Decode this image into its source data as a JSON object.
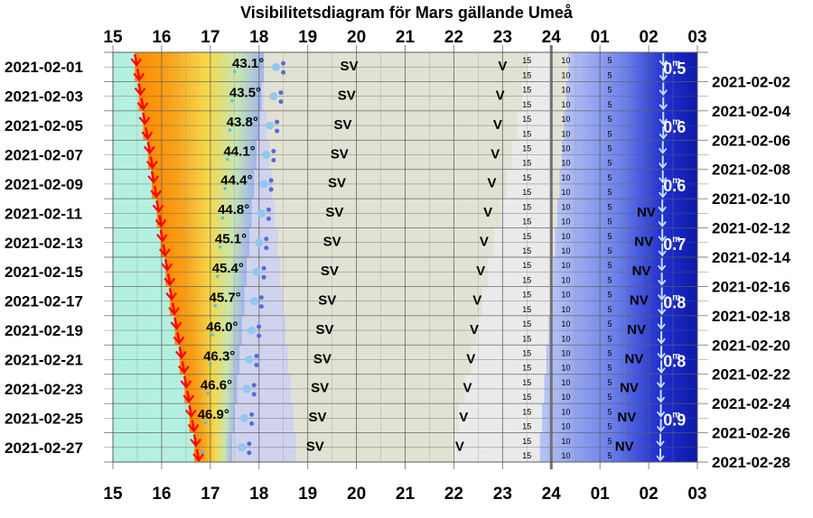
{
  "chart_data": {
    "type": "visibility-diagram",
    "title": "Visibilitetsdiagram för Mars gällande Umeå",
    "hour_labels": [
      "15",
      "16",
      "17",
      "18",
      "19",
      "20",
      "21",
      "22",
      "23",
      "24",
      "01",
      "02",
      "03"
    ],
    "dates_left": [
      "2021-02-01",
      "2021-02-03",
      "2021-02-05",
      "2021-02-07",
      "2021-02-09",
      "2021-02-11",
      "2021-02-13",
      "2021-02-15",
      "2021-02-17",
      "2021-02-19",
      "2021-02-21",
      "2021-02-23",
      "2021-02-25",
      "2021-02-27"
    ],
    "dates_right": [
      "2021-02-02",
      "2021-02-04",
      "2021-02-06",
      "2021-02-08",
      "2021-02-10",
      "2021-02-12",
      "2021-02-14",
      "2021-02-16",
      "2021-02-18",
      "2021-02-20",
      "2021-02-22",
      "2021-02-24",
      "2021-02-26",
      "2021-02-28"
    ],
    "x_range_hours": [
      15,
      27
    ],
    "rows": [
      {
        "sunset": 15.45,
        "twilight_end": 17.85,
        "alt_label": "43.1°",
        "sv_hour": 19.85,
        "v_hour": 23.0,
        "nv_hour": null,
        "mars_set": 2.3
      },
      {
        "sunset": 15.53,
        "twilight_end": 17.8,
        "alt_label": "43.5°",
        "sv_hour": 19.8,
        "v_hour": 22.95,
        "nv_hour": null,
        "mars_set": 2.3
      },
      {
        "sunset": 15.62,
        "twilight_end": 17.75,
        "alt_label": "43.8°",
        "sv_hour": 19.72,
        "v_hour": 22.9,
        "nv_hour": null,
        "mars_set": 2.3
      },
      {
        "sunset": 15.72,
        "twilight_end": 17.7,
        "alt_label": "44.1°",
        "sv_hour": 19.65,
        "v_hour": 22.85,
        "nv_hour": null,
        "mars_set": 2.29
      },
      {
        "sunset": 15.8,
        "twilight_end": 17.65,
        "alt_label": "44.4°",
        "sv_hour": 19.6,
        "v_hour": 22.78,
        "nv_hour": null,
        "mars_set": 2.29
      },
      {
        "sunset": 15.9,
        "twilight_end": 17.6,
        "alt_label": "44.8°",
        "sv_hour": 19.55,
        "v_hour": 22.7,
        "nv_hour": 1.95,
        "mars_set": 2.28
      },
      {
        "sunset": 15.98,
        "twilight_end": 17.55,
        "alt_label": "45.1°",
        "sv_hour": 19.5,
        "v_hour": 22.62,
        "nv_hour": 1.9,
        "mars_set": 2.28
      },
      {
        "sunset": 16.08,
        "twilight_end": 17.5,
        "alt_label": "45.4°",
        "sv_hour": 19.45,
        "v_hour": 22.55,
        "nv_hour": 1.85,
        "mars_set": 2.27
      },
      {
        "sunset": 16.17,
        "twilight_end": 17.45,
        "alt_label": "45.7°",
        "sv_hour": 19.4,
        "v_hour": 22.48,
        "nv_hour": 1.8,
        "mars_set": 2.27
      },
      {
        "sunset": 16.27,
        "twilight_end": 17.4,
        "alt_label": "46.0°",
        "sv_hour": 19.35,
        "v_hour": 22.42,
        "nv_hour": 1.75,
        "mars_set": 2.26
      },
      {
        "sunset": 16.37,
        "twilight_end": 17.35,
        "alt_label": "46.3°",
        "sv_hour": 19.3,
        "v_hour": 22.35,
        "nv_hour": 1.7,
        "mars_set": 2.26
      },
      {
        "sunset": 16.47,
        "twilight_end": 17.3,
        "alt_label": "46.6°",
        "sv_hour": 19.25,
        "v_hour": 22.28,
        "nv_hour": 1.6,
        "mars_set": 2.25
      },
      {
        "sunset": 16.57,
        "twilight_end": 17.25,
        "alt_label": "46.9°",
        "sv_hour": 19.2,
        "v_hour": 22.2,
        "nv_hour": 1.55,
        "mars_set": 2.25
      },
      {
        "sunset": 16.67,
        "twilight_end": 17.2,
        "alt_label": "",
        "sv_hour": 19.15,
        "v_hour": 22.12,
        "nv_hour": 1.5,
        "mars_set": 2.24
      }
    ],
    "altitude_marks": [
      "15",
      "10",
      "5"
    ],
    "magnitudes": [
      {
        "row": 0.5,
        "value": "0.5"
      },
      {
        "row": 2.5,
        "value": "0.6"
      },
      {
        "row": 4.5,
        "value": "0.6"
      },
      {
        "row": 6.5,
        "value": "0.7"
      },
      {
        "row": 8.5,
        "value": "0.8"
      },
      {
        "row": 10.5,
        "value": "0.8"
      },
      {
        "row": 12.5,
        "value": "0.9"
      }
    ],
    "magnitude_unit_superscript": "m",
    "colors": {
      "day": "#b4f0e0",
      "sunset_arrow": "#ff0000",
      "twilight_orange": "#f7a11a",
      "twilight_yellow": "#f5d84a",
      "dusk_blue": "#9fb4f0",
      "night_grey": "#e2e2d4",
      "early_light": "#eaeaea",
      "late_blue": "#6a7fe8",
      "deep_blue": "#0c1aa8",
      "mars_set_arrow": "#c8e0ff",
      "midnight_line": "#707070"
    }
  }
}
